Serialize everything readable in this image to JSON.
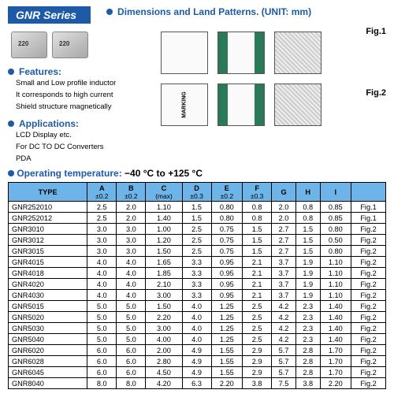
{
  "series_badge": "GNR Series",
  "dims_title": "Dimensions and Land Patterns.  (UNIT: mm)",
  "fig1": "Fig.1",
  "fig2": "Fig.2",
  "marking": "MARKING",
  "features": {
    "title": "Features:",
    "items": [
      "Small and Low profile inductor",
      "It corresponds to high current",
      "Shield structure magnetically"
    ]
  },
  "applications": {
    "title": "Applications:",
    "items": [
      "LCD Display etc.",
      "For DC TO DC Converters",
      "PDA"
    ]
  },
  "optemp_label": "Operating  temperature:",
  "optemp_value": "−40 °C to +125 °C",
  "table": {
    "columns": [
      {
        "h": "TYPE",
        "tol": ""
      },
      {
        "h": "A",
        "tol": "±0.2"
      },
      {
        "h": "B",
        "tol": "±0.2"
      },
      {
        "h": "C",
        "tol": "(max)"
      },
      {
        "h": "D",
        "tol": "±0.3"
      },
      {
        "h": "E",
        "tol": "±0.2"
      },
      {
        "h": "F",
        "tol": "±0.3"
      },
      {
        "h": "G",
        "tol": ""
      },
      {
        "h": "H",
        "tol": ""
      },
      {
        "h": "I",
        "tol": ""
      },
      {
        "h": "",
        "tol": ""
      }
    ],
    "rows": [
      [
        "GNR252010",
        "2.5",
        "2.0",
        "1.10",
        "1.5",
        "0.80",
        "0.8",
        "2.0",
        "0.8",
        "0.85",
        "Fig.1"
      ],
      [
        "GNR252012",
        "2.5",
        "2.0",
        "1.40",
        "1.5",
        "0.80",
        "0.8",
        "2.0",
        "0.8",
        "0.85",
        "Fig.1"
      ],
      [
        "GNR3010",
        "3.0",
        "3.0",
        "1.00",
        "2.5",
        "0.75",
        "1.5",
        "2.7",
        "1.5",
        "0.80",
        "Fig.2"
      ],
      [
        "GNR3012",
        "3.0",
        "3.0",
        "1.20",
        "2.5",
        "0.75",
        "1.5",
        "2.7",
        "1.5",
        "0.50",
        "Fig.2"
      ],
      [
        "GNR3015",
        "3.0",
        "3.0",
        "1.50",
        "2.5",
        "0.75",
        "1.5",
        "2.7",
        "1.5",
        "0.80",
        "Fig.2"
      ],
      [
        "GNR4015",
        "4.0",
        "4.0",
        "1.65",
        "3.3",
        "0.95",
        "2.1",
        "3.7",
        "1.9",
        "1.10",
        "Fig.2"
      ],
      [
        "GNR4018",
        "4.0",
        "4.0",
        "1.85",
        "3.3",
        "0.95",
        "2.1",
        "3.7",
        "1.9",
        "1.10",
        "Fig.2"
      ],
      [
        "GNR4020",
        "4.0",
        "4.0",
        "2.10",
        "3.3",
        "0.95",
        "2.1",
        "3.7",
        "1.9",
        "1.10",
        "Fig.2"
      ],
      [
        "GNR4030",
        "4.0",
        "4.0",
        "3.00",
        "3.3",
        "0.95",
        "2.1",
        "3.7",
        "1.9",
        "1.10",
        "Fig.2"
      ],
      [
        "GNR5015",
        "5.0",
        "5.0",
        "1.50",
        "4.0",
        "1.25",
        "2.5",
        "4.2",
        "2.3",
        "1.40",
        "Fig.2"
      ],
      [
        "GNR5020",
        "5.0",
        "5.0",
        "2.20",
        "4.0",
        "1.25",
        "2.5",
        "4.2",
        "2.3",
        "1.40",
        "Fig.2"
      ],
      [
        "GNR5030",
        "5.0",
        "5.0",
        "3.00",
        "4.0",
        "1.25",
        "2.5",
        "4.2",
        "2.3",
        "1.40",
        "Fig.2"
      ],
      [
        "GNR5040",
        "5.0",
        "5.0",
        "4.00",
        "4.0",
        "1.25",
        "2.5",
        "4.2",
        "2.3",
        "1.40",
        "Fig.2"
      ],
      [
        "GNR6020",
        "6.0",
        "6.0",
        "2.00",
        "4.9",
        "1.55",
        "2.9",
        "5.7",
        "2.8",
        "1.70",
        "Fig.2"
      ],
      [
        "GNR6028",
        "6.0",
        "6.0",
        "2.80",
        "4.9",
        "1.55",
        "2.9",
        "5.7",
        "2.8",
        "1.70",
        "Fig.2"
      ],
      [
        "GNR6045",
        "6.0",
        "6.0",
        "4.50",
        "4.9",
        "1.55",
        "2.9",
        "5.7",
        "2.8",
        "1.70",
        "Fig.2"
      ],
      [
        "GNR8040",
        "8.0",
        "8.0",
        "4.20",
        "6.3",
        "2.20",
        "3.8",
        "7.5",
        "3.8",
        "2.20",
        "Fig.2"
      ]
    ]
  },
  "colors": {
    "brand": "#1e5aa8",
    "table_header_bg": "#6db4e8",
    "cap_green": "#2a7a5a"
  }
}
